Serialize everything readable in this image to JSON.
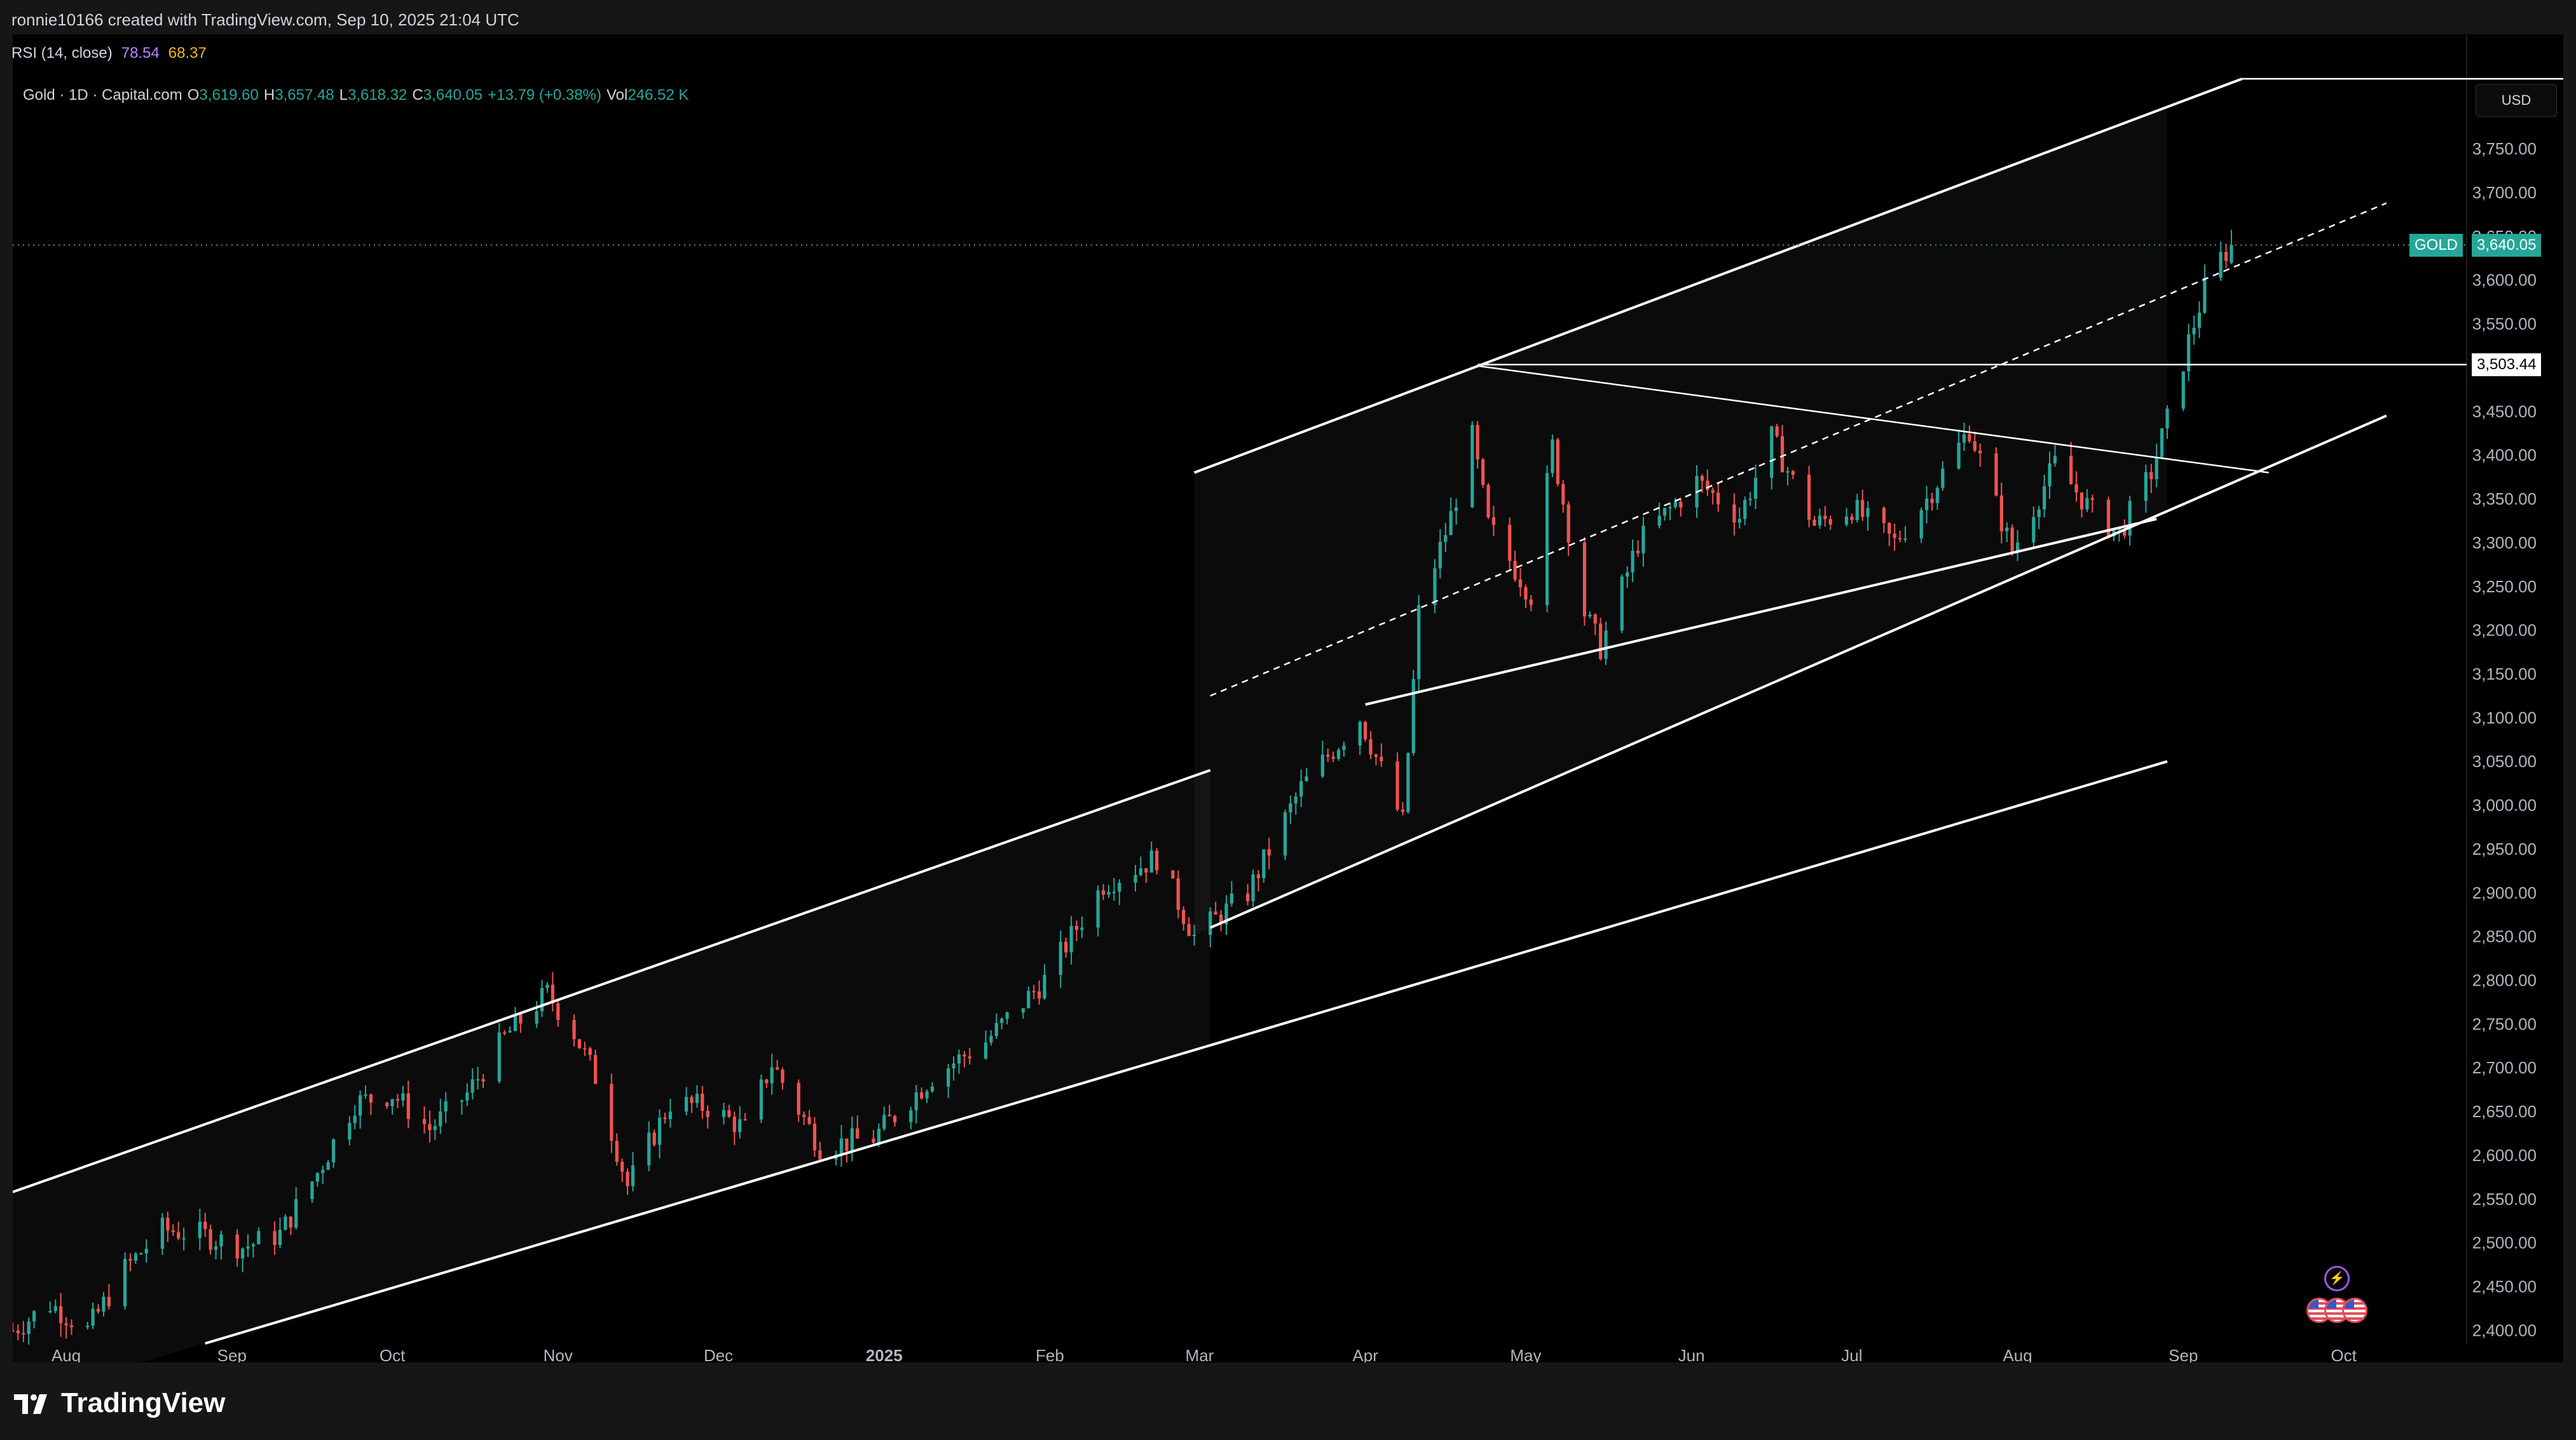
{
  "header": {
    "attribution": "ronnie10166 created with TradingView.com, Sep 10, 2025 21:04 UTC"
  },
  "rsi": {
    "label": "RSI (14, close)",
    "value1": "78.54",
    "value2": "68.37",
    "value1_color": "#b388ff",
    "value2_color": "#f0b90b"
  },
  "legend": {
    "symbol": "Gold · 1D · Capital.com",
    "o_label": "O",
    "o_value": "3,619.60",
    "h_label": "H",
    "h_value": "3,657.48",
    "l_label": "L",
    "l_value": "3,618.32",
    "c_label": "C",
    "c_value": "3,640.05",
    "change": "+13.79 (+0.38%)",
    "vol_label": "Vol",
    "vol_value": "246.52 K"
  },
  "scale": {
    "currency": "USD"
  },
  "tags": {
    "symbol_tag": "GOLD",
    "last_price": "3,640.05",
    "level_price": "3,503.44"
  },
  "branding": {
    "name": "TradingView"
  },
  "colors": {
    "up": "#26a69a",
    "down": "#ef5350",
    "background": "#000000",
    "drawing_lines": "#ffffff"
  },
  "chart_data": {
    "type": "candlestick",
    "title": "Gold · 1D · Capital.com",
    "xlabel": "",
    "ylabel": "",
    "y_ticks": [
      "2,400.00",
      "2,450.00",
      "2,500.00",
      "2,550.00",
      "2,600.00",
      "2,650.00",
      "2,700.00",
      "2,750.00",
      "2,800.00",
      "2,850.00",
      "2,900.00",
      "2,950.00",
      "3,000.00",
      "3,050.00",
      "3,100.00",
      "3,150.00",
      "3,200.00",
      "3,250.00",
      "3,300.00",
      "3,350.00",
      "3,400.00",
      "3,450.00",
      "3,500.00",
      "3,550.00",
      "3,600.00",
      "3,650.00",
      "3,700.00",
      "3,750.00"
    ],
    "ylim": [
      2385,
      3830
    ],
    "x_ticks": [
      "Aug",
      "Sep",
      "Oct",
      "Nov",
      "Dec",
      "2025",
      "Feb",
      "Mar",
      "Apr",
      "May",
      "Jun",
      "Jul",
      "Aug",
      "Sep",
      "Oct"
    ],
    "x_tick_dates": [
      "2024-08-01",
      "2024-09-01",
      "2024-10-01",
      "2024-11-01",
      "2024-12-01",
      "2025-01-01",
      "2025-02-01",
      "2025-03-01",
      "2025-04-01",
      "2025-05-01",
      "2025-06-01",
      "2025-07-01",
      "2025-08-01",
      "2025-09-01",
      "2025-10-01"
    ],
    "x_range": [
      "2024-07-22",
      "2025-10-24"
    ],
    "price_path": [
      [
        "2024-07-22",
        2400
      ],
      [
        "2024-07-29",
        2430
      ],
      [
        "2024-08-05",
        2400
      ],
      [
        "2024-08-12",
        2470
      ],
      [
        "2024-08-19",
        2515
      ],
      [
        "2024-08-26",
        2510
      ],
      [
        "2024-09-03",
        2495
      ],
      [
        "2024-09-10",
        2510
      ],
      [
        "2024-09-17",
        2580
      ],
      [
        "2024-09-24",
        2660
      ],
      [
        "2024-10-01",
        2670
      ],
      [
        "2024-10-08",
        2630
      ],
      [
        "2024-10-15",
        2670
      ],
      [
        "2024-10-22",
        2735
      ],
      [
        "2024-10-30",
        2785
      ],
      [
        "2024-11-04",
        2740
      ],
      [
        "2024-11-08",
        2690
      ],
      [
        "2024-11-14",
        2565
      ],
      [
        "2024-11-22",
        2660
      ],
      [
        "2024-11-29",
        2655
      ],
      [
        "2024-12-06",
        2630
      ],
      [
        "2024-12-11",
        2705
      ],
      [
        "2024-12-20",
        2610
      ],
      [
        "2024-12-30",
        2620
      ],
      [
        "2025-01-10",
        2690
      ],
      [
        "2025-01-20",
        2730
      ],
      [
        "2025-01-31",
        2800
      ],
      [
        "2025-02-11",
        2910
      ],
      [
        "2025-02-21",
        2940
      ],
      [
        "2025-02-28",
        2850
      ],
      [
        "2025-03-10",
        2900
      ],
      [
        "2025-03-20",
        3020
      ],
      [
        "2025-03-31",
        3100
      ],
      [
        "2025-04-08",
        2980
      ],
      [
        "2025-04-11",
        3220
      ],
      [
        "2025-04-17",
        3330
      ],
      [
        "2025-04-21",
        3420
      ],
      [
        "2025-04-24",
        3320
      ],
      [
        "2025-05-02",
        3240
      ],
      [
        "2025-05-06",
        3410
      ],
      [
        "2025-05-12",
        3220
      ],
      [
        "2025-05-15",
        3180
      ],
      [
        "2025-05-22",
        3300
      ],
      [
        "2025-06-02",
        3370
      ],
      [
        "2025-06-10",
        3330
      ],
      [
        "2025-06-16",
        3420
      ],
      [
        "2025-06-24",
        3320
      ],
      [
        "2025-07-01",
        3340
      ],
      [
        "2025-07-09",
        3300
      ],
      [
        "2025-07-15",
        3350
      ],
      [
        "2025-07-23",
        3430
      ],
      [
        "2025-07-31",
        3290
      ],
      [
        "2025-08-08",
        3390
      ],
      [
        "2025-08-15",
        3335
      ],
      [
        "2025-08-20",
        3310
      ],
      [
        "2025-08-26",
        3380
      ],
      [
        "2025-08-29",
        3440
      ],
      [
        "2025-09-02",
        3530
      ],
      [
        "2025-09-05",
        3590
      ],
      [
        "2025-09-08",
        3625
      ],
      [
        "2025-09-10",
        3640.05
      ]
    ],
    "last": {
      "date": "2025-09-10",
      "open": 3619.6,
      "high": 3657.48,
      "low": 3618.32,
      "close": 3640.05
    },
    "horizontal_levels": [
      3503.44
    ],
    "drawings": [
      {
        "name": "lower-channel-top",
        "from": [
          "2024-07-22",
          2558
        ],
        "to": [
          "2025-03-03",
          3040
        ]
      },
      {
        "name": "lower-channel-bottom",
        "from": [
          "2024-08-27",
          2385
        ],
        "to": [
          "2025-08-29",
          3050
        ]
      },
      {
        "name": "upper-channel-top",
        "from": [
          "2025-02-28",
          3380
        ],
        "to": [
          "2025-09-12",
          3830
        ]
      },
      {
        "name": "upper-channel-bottom-long",
        "from": [
          "2025-03-03",
          2860
        ],
        "to": [
          "2025-10-09",
          3445
        ]
      },
      {
        "name": "upper-channel-bottom",
        "from": [
          "2025-04-01",
          3115
        ],
        "to": [
          "2025-08-27",
          3327
        ]
      },
      {
        "name": "triangle-top",
        "from": [
          "2025-04-22",
          3502
        ],
        "to": [
          "2025-09-17",
          3380
        ]
      },
      {
        "name": "channel-midline-dashed",
        "from": [
          "2025-03-03",
          3125
        ],
        "to": [
          "2025-10-09",
          3688
        ]
      },
      {
        "name": "channel-cap",
        "from": [
          "2025-09-12",
          3830
        ],
        "to": [
          "2025-10-24",
          3830
        ]
      }
    ]
  }
}
